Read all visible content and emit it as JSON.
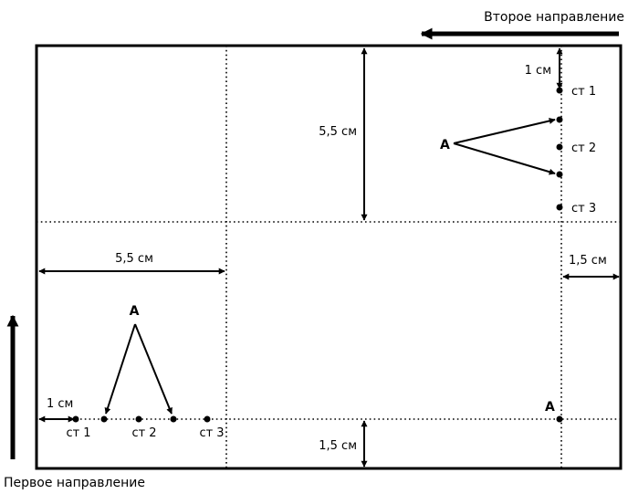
{
  "directions": {
    "first": "Первое направление",
    "second": "Второе направление"
  },
  "measures": {
    "top_vertical": "5,5 см",
    "left_horizontal": "5,5 см",
    "right_offset": "1,5 см",
    "bottom_offset": "1,5 см",
    "top_right_offset": "1 см",
    "bottom_left_offset": "1 см"
  },
  "stations": {
    "st1": "ст 1",
    "st2": "ст 2",
    "st3": "ст 3"
  },
  "points": {
    "a": "А"
  }
}
